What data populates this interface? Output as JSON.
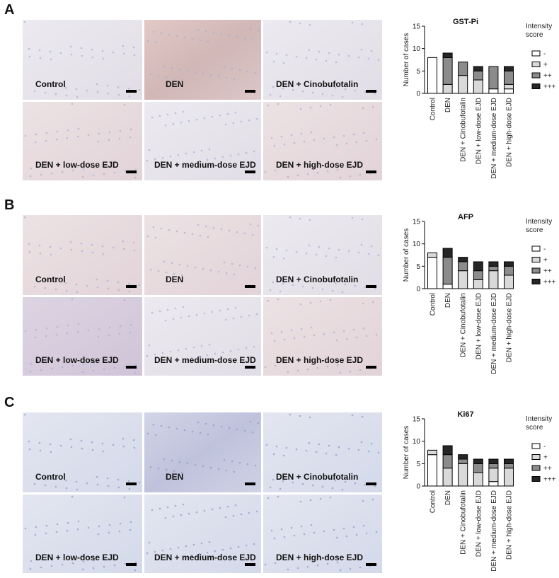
{
  "panels": [
    {
      "label": "A",
      "images": [
        "Control",
        "DEN",
        "DEN + Cinobufotalin",
        "DEN + low-dose EJD",
        "DEN + medium-dose EJD",
        "DEN + high-dose EJD"
      ]
    },
    {
      "label": "B",
      "images": [
        "Control",
        "DEN",
        "DEN + Cinobufotalin",
        "DEN + low-dose EJD",
        "DEN + medium-dose EJD",
        "DEN + high-dose EJD"
      ]
    },
    {
      "label": "C",
      "images": [
        "Control",
        "DEN",
        "DEN + Cinobufotalin",
        "DEN + low-dose EJD",
        "DEN + medium-dose EJD",
        "DEN + high-dose EJD"
      ]
    }
  ],
  "chart_data": [
    {
      "type": "bar",
      "stacked": true,
      "title": "GST-Pi",
      "ylabel": "Number of cases",
      "legend_title": "Intensity score",
      "categories": [
        "Control",
        "DEN",
        "DEN + Cinobufotalin",
        "DEN + low-dose EJD",
        "DEN + medium-dose EJD",
        "DEN + high-dose EJD"
      ],
      "ylim": [
        0,
        15
      ],
      "yticks": [
        0,
        5,
        10,
        15
      ],
      "series": [
        {
          "name": "-",
          "color": "#ffffff",
          "values": [
            8,
            0,
            0,
            0,
            1,
            1
          ]
        },
        {
          "name": "+",
          "color": "#d9d9d9",
          "values": [
            0,
            2,
            4,
            3,
            0,
            1
          ]
        },
        {
          "name": "++",
          "color": "#8c8c8c",
          "values": [
            0,
            6,
            3,
            2,
            5,
            3
          ]
        },
        {
          "name": "+++",
          "color": "#262626",
          "values": [
            0,
            1,
            0,
            1,
            0,
            1
          ]
        }
      ]
    },
    {
      "type": "bar",
      "stacked": true,
      "title": "AFP",
      "ylabel": "Number of cases",
      "legend_title": "Intensity score",
      "categories": [
        "Control",
        "DEN",
        "DEN + Cinobufotalin",
        "DEN + low-dose EJD",
        "DEN + medium-dose EJD",
        "DEN + high-dose EJD"
      ],
      "ylim": [
        0,
        15
      ],
      "yticks": [
        0,
        5,
        10,
        15
      ],
      "series": [
        {
          "name": "-",
          "color": "#ffffff",
          "values": [
            7,
            1,
            0,
            0,
            0,
            0
          ]
        },
        {
          "name": "+",
          "color": "#d9d9d9",
          "values": [
            1,
            0,
            4,
            2,
            4,
            3
          ]
        },
        {
          "name": "++",
          "color": "#8c8c8c",
          "values": [
            0,
            6,
            2,
            2,
            1,
            2
          ]
        },
        {
          "name": "+++",
          "color": "#262626",
          "values": [
            0,
            2,
            1,
            2,
            1,
            1
          ]
        }
      ]
    },
    {
      "type": "bar",
      "stacked": true,
      "title": "Ki67",
      "ylabel": "Number of cases",
      "legend_title": "Intensity score",
      "categories": [
        "Control",
        "DEN",
        "DEN + Cinobufotalin",
        "DEN + low-dose EJD",
        "DEN + medium-dose EJD",
        "DEN + high-dose EJD"
      ],
      "ylim": [
        0,
        15
      ],
      "yticks": [
        0,
        5,
        10,
        15
      ],
      "series": [
        {
          "name": "-",
          "color": "#ffffff",
          "values": [
            7,
            0,
            0,
            0,
            1,
            0
          ]
        },
        {
          "name": "+",
          "color": "#d9d9d9",
          "values": [
            1,
            4,
            5,
            3,
            3,
            4
          ]
        },
        {
          "name": "++",
          "color": "#8c8c8c",
          "values": [
            0,
            3,
            1,
            2,
            1,
            1
          ]
        },
        {
          "name": "+++",
          "color": "#262626",
          "values": [
            0,
            2,
            1,
            1,
            1,
            1
          ]
        }
      ]
    }
  ]
}
